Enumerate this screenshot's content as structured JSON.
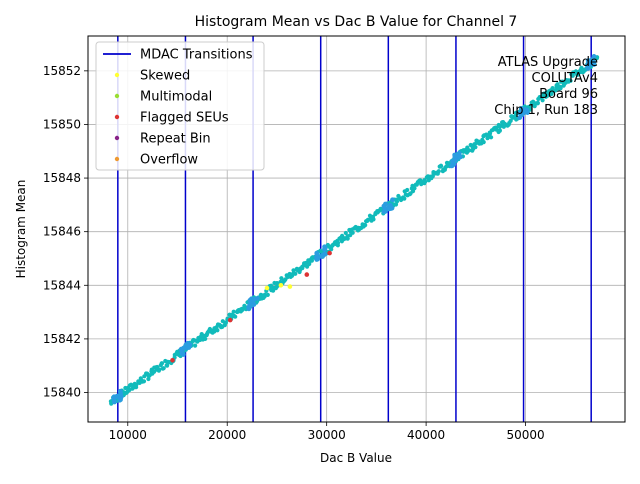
{
  "chart_data": {
    "type": "scatter",
    "title": "Histogram Mean vs Dac B Value for Channel 7",
    "xlabel": "Dac B Value",
    "ylabel": "Histogram Mean",
    "xlim": [
      6000,
      60000
    ],
    "ylim": [
      15838.9,
      15853.3
    ],
    "x_ticks": [
      10000,
      20000,
      30000,
      40000,
      50000
    ],
    "x_tick_labels": [
      "10000",
      "20000",
      "30000",
      "40000",
      "50000"
    ],
    "y_ticks": [
      15840,
      15842,
      15844,
      15846,
      15848,
      15850,
      15852
    ],
    "y_tick_labels": [
      "15840",
      "15842",
      "15844",
      "15846",
      "15848",
      "15850",
      "15852"
    ],
    "grid": true,
    "legend_position": "top-left",
    "legend": [
      {
        "label": "MDAC Transitions",
        "kind": "line",
        "color": "#0000cc"
      },
      {
        "label": "Skewed",
        "kind": "dot",
        "color": "#ffff33"
      },
      {
        "label": "Multimodal",
        "kind": "dot",
        "color": "#99dd33"
      },
      {
        "label": "Flagged SEUs",
        "kind": "dot",
        "color": "#dd3333"
      },
      {
        "label": "Repeat Bin",
        "kind": "dot",
        "color": "#882288"
      },
      {
        "label": "Overflow",
        "kind": "dot",
        "color": "#ee9933"
      }
    ],
    "annotation_lines": [
      "ATLAS Upgrade",
      "COLUTAv4",
      "Board 96",
      "Chip 1, Run 183"
    ],
    "mdac_transitions": [
      9000,
      15800,
      22600,
      29400,
      36200,
      43000,
      49800,
      56600
    ],
    "main_series": {
      "name": "data",
      "color": "#11bbbb",
      "x_start": 8300,
      "x_end": 57200,
      "y_start": 15839.65,
      "y_end": 15852.45
    },
    "transition_clusters": {
      "color": "#2a9de0",
      "x": [
        9000,
        15800,
        22600,
        29400,
        36200,
        43000,
        49800,
        56600
      ]
    },
    "special_points": [
      {
        "category": "Skewed",
        "x": 24000,
        "y": 15843.9
      },
      {
        "category": "Skewed",
        "x": 25400,
        "y": 15844.0
      },
      {
        "category": "Skewed",
        "x": 26300,
        "y": 15843.95
      },
      {
        "category": "Flagged SEUs",
        "x": 14500,
        "y": 15841.2
      },
      {
        "category": "Flagged SEUs",
        "x": 20300,
        "y": 15842.7
      },
      {
        "category": "Flagged SEUs",
        "x": 28000,
        "y": 15844.4
      },
      {
        "category": "Flagged SEUs",
        "x": 30300,
        "y": 15845.2
      }
    ]
  }
}
